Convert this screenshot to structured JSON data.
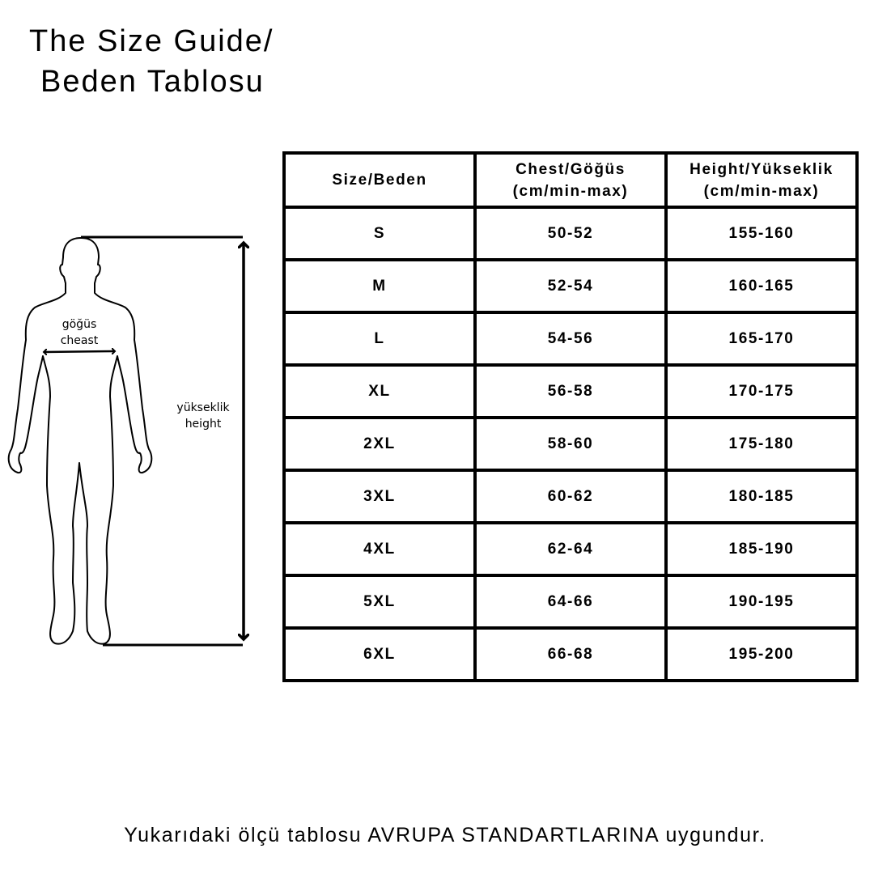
{
  "title": {
    "line1": "The Size Guide/",
    "line2": "Beden Tablosu"
  },
  "figure": {
    "chest_label_tr": "göğüs",
    "chest_label_en": "cheast",
    "height_label_tr": "yükseklik",
    "height_label_en": "height"
  },
  "table": {
    "headers": [
      {
        "line1": "Size/Beden",
        "line2": ""
      },
      {
        "line1": "Chest/Göğüs",
        "line2": "(cm/min-max)"
      },
      {
        "line1": "Height/Yükseklik",
        "line2": "(cm/min-max)"
      }
    ],
    "rows": [
      {
        "size": "S",
        "chest": "50-52",
        "height": "155-160"
      },
      {
        "size": "M",
        "chest": "52-54",
        "height": "160-165"
      },
      {
        "size": "L",
        "chest": "54-56",
        "height": "165-170"
      },
      {
        "size": "XL",
        "chest": "56-58",
        "height": "170-175"
      },
      {
        "size": "2XL",
        "chest": "58-60",
        "height": "175-180"
      },
      {
        "size": "3XL",
        "chest": "60-62",
        "height": "180-185"
      },
      {
        "size": "4XL",
        "chest": "62-64",
        "height": "185-190"
      },
      {
        "size": "5XL",
        "chest": "64-66",
        "height": "190-195"
      },
      {
        "size": "6XL",
        "chest": "66-68",
        "height": "195-200"
      }
    ]
  },
  "footer": "Yukarıdaki ölçü tablosu AVRUPA STANDARTLARINA uygundur."
}
